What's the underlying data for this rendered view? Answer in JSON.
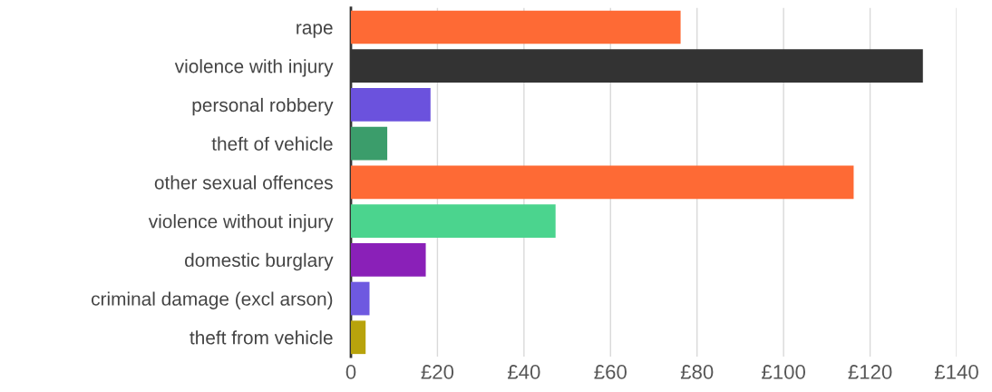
{
  "chart_data": {
    "type": "bar",
    "orientation": "horizontal",
    "categories": [
      "rape",
      "violence with injury",
      "personal robbery",
      "theft of vehicle",
      "other sexual offences",
      "violence without injury",
      "domestic burglary",
      "criminal damage (excl arson)",
      "theft from vehicle"
    ],
    "values": [
      76.2,
      132.2,
      18.4,
      8.4,
      116.2,
      47.3,
      17.3,
      4.3,
      3.4
    ],
    "colors": [
      "#fe6a35",
      "#333333",
      "#6b52dd",
      "#3b9d6b",
      "#fe6a35",
      "#4bd48e",
      "#8a20b8",
      "#6e59e0",
      "#b8a30c"
    ],
    "xlim": [
      0,
      140
    ],
    "xticks": [
      0,
      {
        "value": 20,
        "label": "£20"
      },
      {
        "value": 40,
        "label": "£40"
      },
      {
        "value": 60,
        "label": "£60"
      },
      {
        "value": 80,
        "label": "£80"
      },
      {
        "value": 100,
        "label": "£100"
      },
      {
        "value": 120,
        "label": "£120"
      },
      {
        "value": 140,
        "label": "£140"
      }
    ],
    "grid": "x"
  }
}
